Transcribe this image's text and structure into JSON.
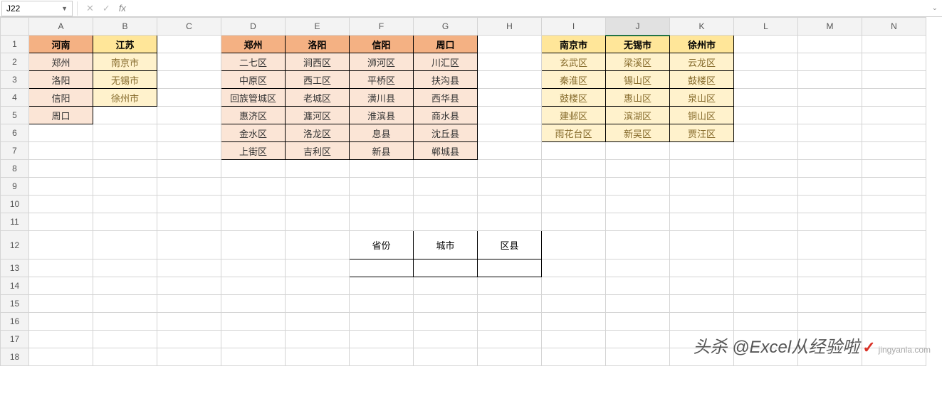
{
  "formula_bar": {
    "cell_ref": "J22",
    "fx_label": "fx",
    "value": ""
  },
  "columns": [
    "A",
    "B",
    "C",
    "D",
    "E",
    "F",
    "G",
    "H",
    "I",
    "J",
    "K",
    "L",
    "M",
    "N"
  ],
  "active_column": "J",
  "rows": 18,
  "active_cell": {
    "row": 22,
    "col": "J"
  },
  "table_a": {
    "headers": [
      {
        "col": "A",
        "row": 1,
        "text": "河南",
        "style": "hdr-orange"
      },
      {
        "col": "B",
        "row": 1,
        "text": "江苏",
        "style": "hdr-yellow"
      }
    ],
    "cells": [
      {
        "col": "A",
        "row": 2,
        "text": "郑州",
        "style": "cell-orange"
      },
      {
        "col": "A",
        "row": 3,
        "text": "洛阳",
        "style": "cell-orange"
      },
      {
        "col": "A",
        "row": 4,
        "text": "信阳",
        "style": "cell-orange"
      },
      {
        "col": "A",
        "row": 5,
        "text": "周口",
        "style": "cell-orange"
      },
      {
        "col": "B",
        "row": 2,
        "text": "南京市",
        "style": "cell-yellow"
      },
      {
        "col": "B",
        "row": 3,
        "text": "无锡市",
        "style": "cell-yellow"
      },
      {
        "col": "B",
        "row": 4,
        "text": "徐州市",
        "style": "cell-yellow"
      }
    ]
  },
  "table_b": {
    "headers": [
      {
        "col": "D",
        "row": 1,
        "text": "郑州",
        "style": "hdr-orange"
      },
      {
        "col": "E",
        "row": 1,
        "text": "洛阳",
        "style": "hdr-orange"
      },
      {
        "col": "F",
        "row": 1,
        "text": "信阳",
        "style": "hdr-orange"
      },
      {
        "col": "G",
        "row": 1,
        "text": "周口",
        "style": "hdr-orange"
      }
    ],
    "cells": [
      {
        "col": "D",
        "row": 2,
        "text": "二七区",
        "style": "cell-orange"
      },
      {
        "col": "D",
        "row": 3,
        "text": "中原区",
        "style": "cell-orange"
      },
      {
        "col": "D",
        "row": 4,
        "text": "回族管城区",
        "style": "cell-orange"
      },
      {
        "col": "D",
        "row": 5,
        "text": "惠济区",
        "style": "cell-orange"
      },
      {
        "col": "D",
        "row": 6,
        "text": "金水区",
        "style": "cell-orange"
      },
      {
        "col": "D",
        "row": 7,
        "text": "上街区",
        "style": "cell-orange"
      },
      {
        "col": "E",
        "row": 2,
        "text": "涧西区",
        "style": "cell-orange"
      },
      {
        "col": "E",
        "row": 3,
        "text": "西工区",
        "style": "cell-orange"
      },
      {
        "col": "E",
        "row": 4,
        "text": "老城区",
        "style": "cell-orange"
      },
      {
        "col": "E",
        "row": 5,
        "text": "瀍河区",
        "style": "cell-orange"
      },
      {
        "col": "E",
        "row": 6,
        "text": "洛龙区",
        "style": "cell-orange"
      },
      {
        "col": "E",
        "row": 7,
        "text": "吉利区",
        "style": "cell-orange"
      },
      {
        "col": "F",
        "row": 2,
        "text": "浉河区",
        "style": "cell-orange"
      },
      {
        "col": "F",
        "row": 3,
        "text": "平桥区",
        "style": "cell-orange"
      },
      {
        "col": "F",
        "row": 4,
        "text": "潢川县",
        "style": "cell-orange"
      },
      {
        "col": "F",
        "row": 5,
        "text": "淮滨县",
        "style": "cell-orange"
      },
      {
        "col": "F",
        "row": 6,
        "text": "息县",
        "style": "cell-orange"
      },
      {
        "col": "F",
        "row": 7,
        "text": "新县",
        "style": "cell-orange"
      },
      {
        "col": "G",
        "row": 2,
        "text": "川汇区",
        "style": "cell-orange"
      },
      {
        "col": "G",
        "row": 3,
        "text": "扶沟县",
        "style": "cell-orange"
      },
      {
        "col": "G",
        "row": 4,
        "text": "西华县",
        "style": "cell-orange"
      },
      {
        "col": "G",
        "row": 5,
        "text": "商水县",
        "style": "cell-orange"
      },
      {
        "col": "G",
        "row": 6,
        "text": "沈丘县",
        "style": "cell-orange"
      },
      {
        "col": "G",
        "row": 7,
        "text": "郸城县",
        "style": "cell-orange"
      }
    ]
  },
  "table_c": {
    "headers": [
      {
        "col": "I",
        "row": 1,
        "text": "南京市",
        "style": "hdr-yellow"
      },
      {
        "col": "J",
        "row": 1,
        "text": "无锡市",
        "style": "hdr-yellow"
      },
      {
        "col": "K",
        "row": 1,
        "text": "徐州市",
        "style": "hdr-yellow"
      }
    ],
    "cells": [
      {
        "col": "I",
        "row": 2,
        "text": "玄武区",
        "style": "cell-yellow"
      },
      {
        "col": "I",
        "row": 3,
        "text": "秦淮区",
        "style": "cell-yellow"
      },
      {
        "col": "I",
        "row": 4,
        "text": "鼓楼区",
        "style": "cell-yellow"
      },
      {
        "col": "I",
        "row": 5,
        "text": "建邺区",
        "style": "cell-yellow"
      },
      {
        "col": "I",
        "row": 6,
        "text": "雨花台区",
        "style": "cell-yellow"
      },
      {
        "col": "J",
        "row": 2,
        "text": "梁溪区",
        "style": "cell-yellow"
      },
      {
        "col": "J",
        "row": 3,
        "text": "锡山区",
        "style": "cell-yellow"
      },
      {
        "col": "J",
        "row": 4,
        "text": "惠山区",
        "style": "cell-yellow"
      },
      {
        "col": "J",
        "row": 5,
        "text": "滨湖区",
        "style": "cell-yellow"
      },
      {
        "col": "J",
        "row": 6,
        "text": "新吴区",
        "style": "cell-yellow"
      },
      {
        "col": "K",
        "row": 2,
        "text": "云龙区",
        "style": "cell-yellow"
      },
      {
        "col": "K",
        "row": 3,
        "text": "鼓楼区",
        "style": "cell-yellow"
      },
      {
        "col": "K",
        "row": 4,
        "text": "泉山区",
        "style": "cell-yellow"
      },
      {
        "col": "K",
        "row": 5,
        "text": "铜山区",
        "style": "cell-yellow"
      },
      {
        "col": "K",
        "row": 6,
        "text": "贾汪区",
        "style": "cell-yellow"
      }
    ]
  },
  "form_box": {
    "cells": [
      {
        "col": "F",
        "row": 12,
        "text": "省份",
        "style": "blackbox tall"
      },
      {
        "col": "G",
        "row": 12,
        "text": "城市",
        "style": "blackbox tall"
      },
      {
        "col": "H",
        "row": 12,
        "text": "区县",
        "style": "blackbox tall"
      },
      {
        "col": "F",
        "row": 13,
        "text": "",
        "style": "blackbox"
      },
      {
        "col": "G",
        "row": 13,
        "text": "",
        "style": "blackbox"
      },
      {
        "col": "H",
        "row": 13,
        "text": "",
        "style": "blackbox"
      }
    ]
  },
  "watermark": {
    "main": "头杀 @Excel从经验啦",
    "small": "jingyanla.com",
    "check": "✓"
  }
}
